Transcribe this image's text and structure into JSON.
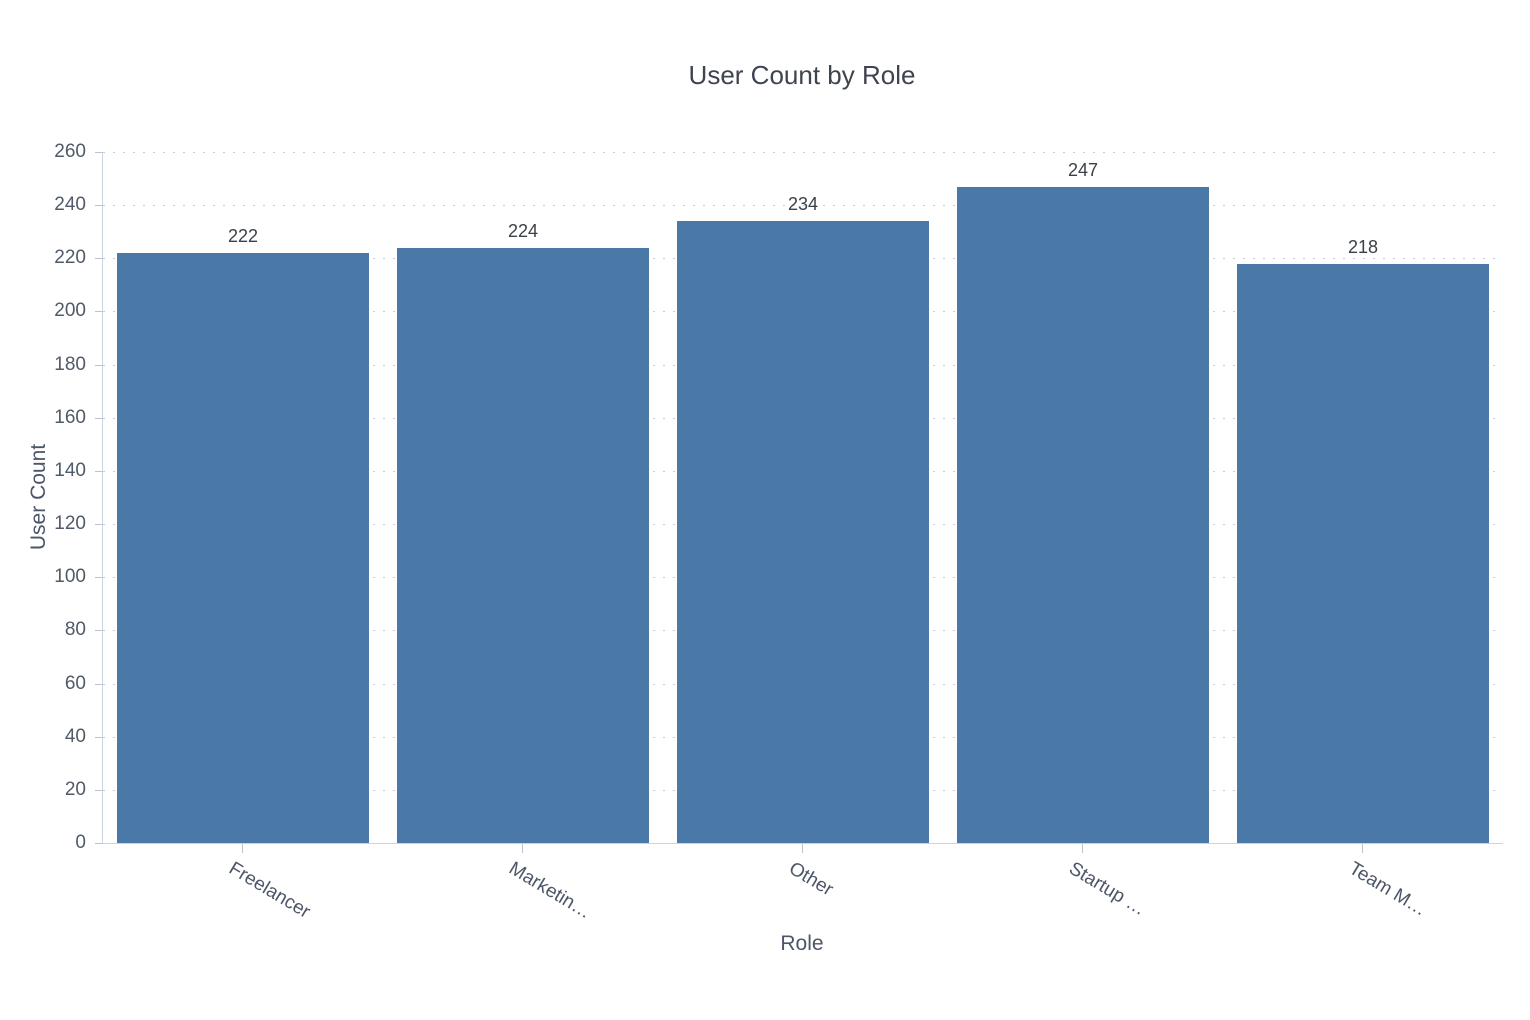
{
  "chart_data": {
    "type": "bar",
    "title": "User Count by Role",
    "xlabel": "Role",
    "ylabel": "User Count",
    "categories": [
      "Freelancer",
      "Marketin…",
      "Other",
      "Startup …",
      "Team M…"
    ],
    "values": [
      222,
      224,
      234,
      247,
      218
    ],
    "value_labels": [
      "222",
      "224",
      "234",
      "247",
      "218"
    ],
    "ylim": [
      0,
      260
    ],
    "ytick_interval": 20,
    "yticks": [
      0,
      20,
      40,
      60,
      80,
      100,
      120,
      140,
      160,
      180,
      200,
      220,
      240,
      260
    ],
    "grid": "horizontal-dashed",
    "legend": "none",
    "xlabel_rotation_deg": 31,
    "colors": {
      "bar": "#4a79a8",
      "gridline": "#c6ccd6",
      "axis_line": "#c9d3e2",
      "tick_mark": "#b9c2d0",
      "tick_text": "#505a68",
      "axis_title_text": "#4c5668",
      "title_text": "#3e4450",
      "value_label_text": "#3b4049",
      "background": "#ffffff"
    }
  }
}
